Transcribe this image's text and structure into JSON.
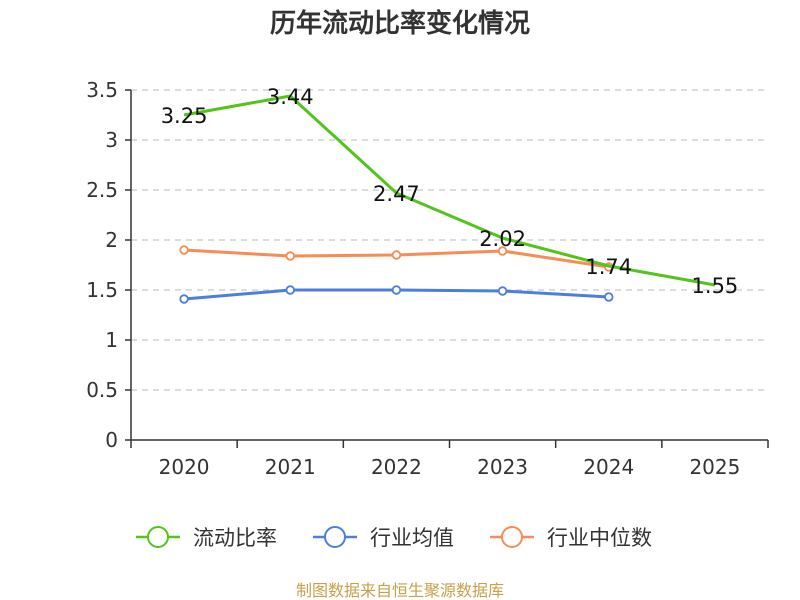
{
  "chart_data": {
    "type": "line",
    "title": "历年流动比率变化情况",
    "categories": [
      "2020",
      "2021",
      "2022",
      "2023",
      "2024",
      "2025"
    ],
    "ylim": [
      0,
      3.5
    ],
    "yticks": [
      0,
      0.5,
      1,
      1.5,
      2,
      2.5,
      3,
      3.5
    ],
    "ytick_labels": [
      "0",
      "0.5",
      "1",
      "1.5",
      "2",
      "2.5",
      "3",
      "3.5"
    ],
    "xlabel": "",
    "ylabel": "",
    "grid": true,
    "legend_position": "bottom",
    "series": [
      {
        "name": "流动比率",
        "color": "#52c41a",
        "values": [
          3.25,
          3.44,
          2.47,
          2.02,
          1.74,
          1.55
        ],
        "labels": [
          "3.25",
          "3.44",
          "2.47",
          "2.02",
          "1.74",
          "1.55"
        ],
        "show_labels": true
      },
      {
        "name": "行业均值",
        "color": "#4a7fe0",
        "values": [
          1.41,
          1.5,
          1.5,
          1.49,
          1.43,
          null
        ],
        "show_labels": false
      },
      {
        "name": "行业中位数",
        "color": "#f78c54",
        "values": [
          1.9,
          1.84,
          1.85,
          1.89,
          1.73,
          null
        ],
        "show_labels": false
      }
    ]
  },
  "source": "制图数据来自恒生聚源数据库"
}
